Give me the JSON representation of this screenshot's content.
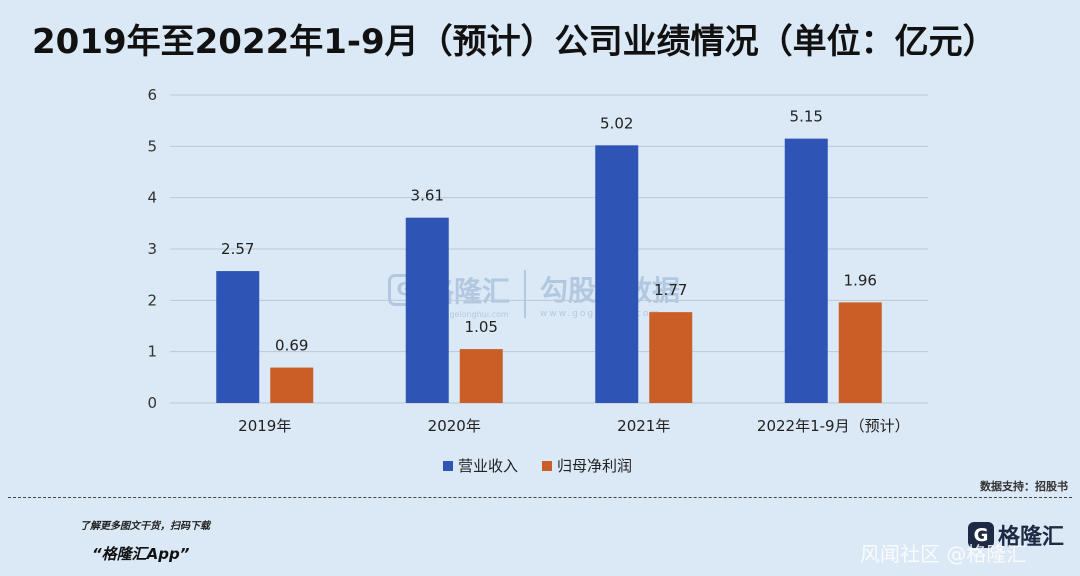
{
  "title": "2019年至2022年1-9月（预计）公司业绩情况（单位：亿元）",
  "source": "数据支持：招股书",
  "footer": {
    "promo_line1": "了解更多图文干货，扫码下载",
    "promo_line2": "“格隆汇App”",
    "logo_text": "格隆汇",
    "logo_mark": "G",
    "watermark": "风闻社区 @格隆汇"
  },
  "watermark_center": {
    "left_mark": "G",
    "left_name": "格隆汇",
    "left_url": "www.gelonghui.com",
    "right_name": "勾股大数据",
    "right_url": "www.gogudata.com"
  },
  "colors": {
    "revenue": "#2e55b5",
    "profit": "#c95f26",
    "grid": "#bcc8d6",
    "background": "#dbe8f5"
  },
  "chart_data": {
    "type": "bar",
    "title": "2019年至2022年1-9月（预计）公司业绩情况（单位：亿元）",
    "categories": [
      "2019年",
      "2020年",
      "2021年",
      "2022年1-9月（预计）"
    ],
    "series": [
      {
        "name": "营业收入",
        "values": [
          2.57,
          3.61,
          5.02,
          5.15
        ],
        "color_key": "revenue"
      },
      {
        "name": "归母净利润",
        "values": [
          0.69,
          1.05,
          1.77,
          1.96
        ],
        "color_key": "profit"
      }
    ],
    "xlabel": "",
    "ylabel": "",
    "ylim": [
      0,
      6
    ],
    "yticks": [
      0,
      1,
      2,
      3,
      4,
      5,
      6
    ],
    "grid": true,
    "legend": "bottom-center",
    "data_labels": true
  }
}
